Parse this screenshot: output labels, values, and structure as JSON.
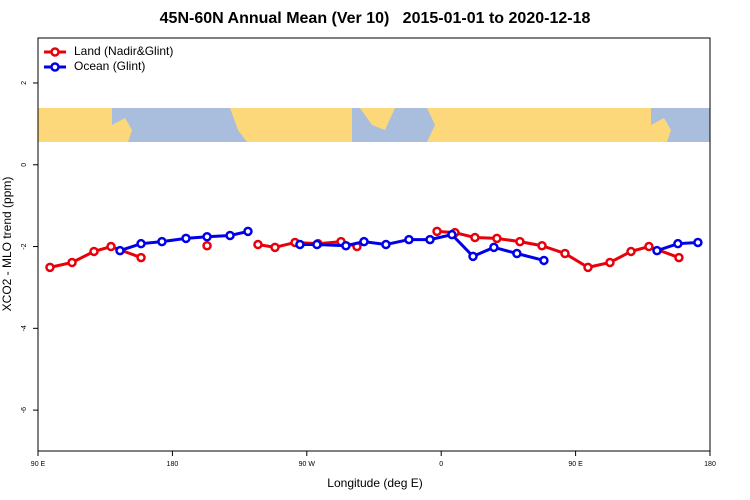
{
  "chart_data": {
    "type": "line",
    "title": "45N-60N Annual Mean (Ver 10)   2015-01-01 to 2020-12-18",
    "x_label": "Longitude (deg E)",
    "y_label": "XCO2 - MLO trend (ppm)",
    "xlim": [
      90,
      540
    ],
    "ylim": [
      -7,
      3.1
    ],
    "xticks": [
      {
        "value": 90,
        "label": "90 E"
      },
      180,
      {
        "value": 270,
        "label": "90 W"
      },
      {
        "value": 360,
        "label": "0"
      },
      {
        "value": 450,
        "label": "90 E"
      },
      {
        "value": 540,
        "label": "180"
      }
    ],
    "yticks": [
      -6,
      -4,
      -2,
      0,
      2
    ],
    "legend": "top-left",
    "series": [
      {
        "name": "Land (Nadir&Glint)",
        "color": "#e8000b",
        "x": [
          98,
          112.8,
          127.5,
          138.9,
          159,
          null,
          203.2,
          null,
          237.3,
          248.7,
          262.1,
          277.5,
          292.9,
          303.6,
          null,
          357.2,
          369.2,
          382.6,
          397.3,
          412.7,
          427.5,
          442.9,
          458.3,
          473,
          487.1,
          499.1,
          519.2
        ],
        "values": [
          -2.51,
          -2.39,
          -2.12,
          -2.0,
          -2.27,
          null,
          -1.98,
          null,
          -1.95,
          -2.02,
          -1.9,
          -1.93,
          -1.88,
          -2.0,
          null,
          -1.63,
          -1.66,
          -1.78,
          -1.8,
          -1.88,
          -1.98,
          -2.17,
          -2.51,
          -2.39,
          -2.12,
          -2.0,
          -2.27
        ]
      },
      {
        "name": "Ocean (Glint)",
        "color": "#0000e8",
        "x": [
          144.9,
          159,
          173,
          189.1,
          203.2,
          218.6,
          230.6,
          null,
          265.4,
          276.8,
          296.2,
          308.3,
          323,
          338.4,
          352.5,
          367.2,
          381.3,
          395.3,
          410.7,
          428.8,
          null,
          504.5,
          518.5,
          531.9
        ],
        "values": [
          -2.1,
          -1.93,
          -1.88,
          -1.8,
          -1.76,
          -1.73,
          -1.63,
          null,
          -1.95,
          -1.95,
          -1.98,
          -1.88,
          -1.95,
          -1.83,
          -1.83,
          -1.71,
          -2.24,
          -2.02,
          -2.17,
          -2.34,
          null,
          -2.1,
          -1.93,
          -1.9
        ]
      }
    ]
  }
}
